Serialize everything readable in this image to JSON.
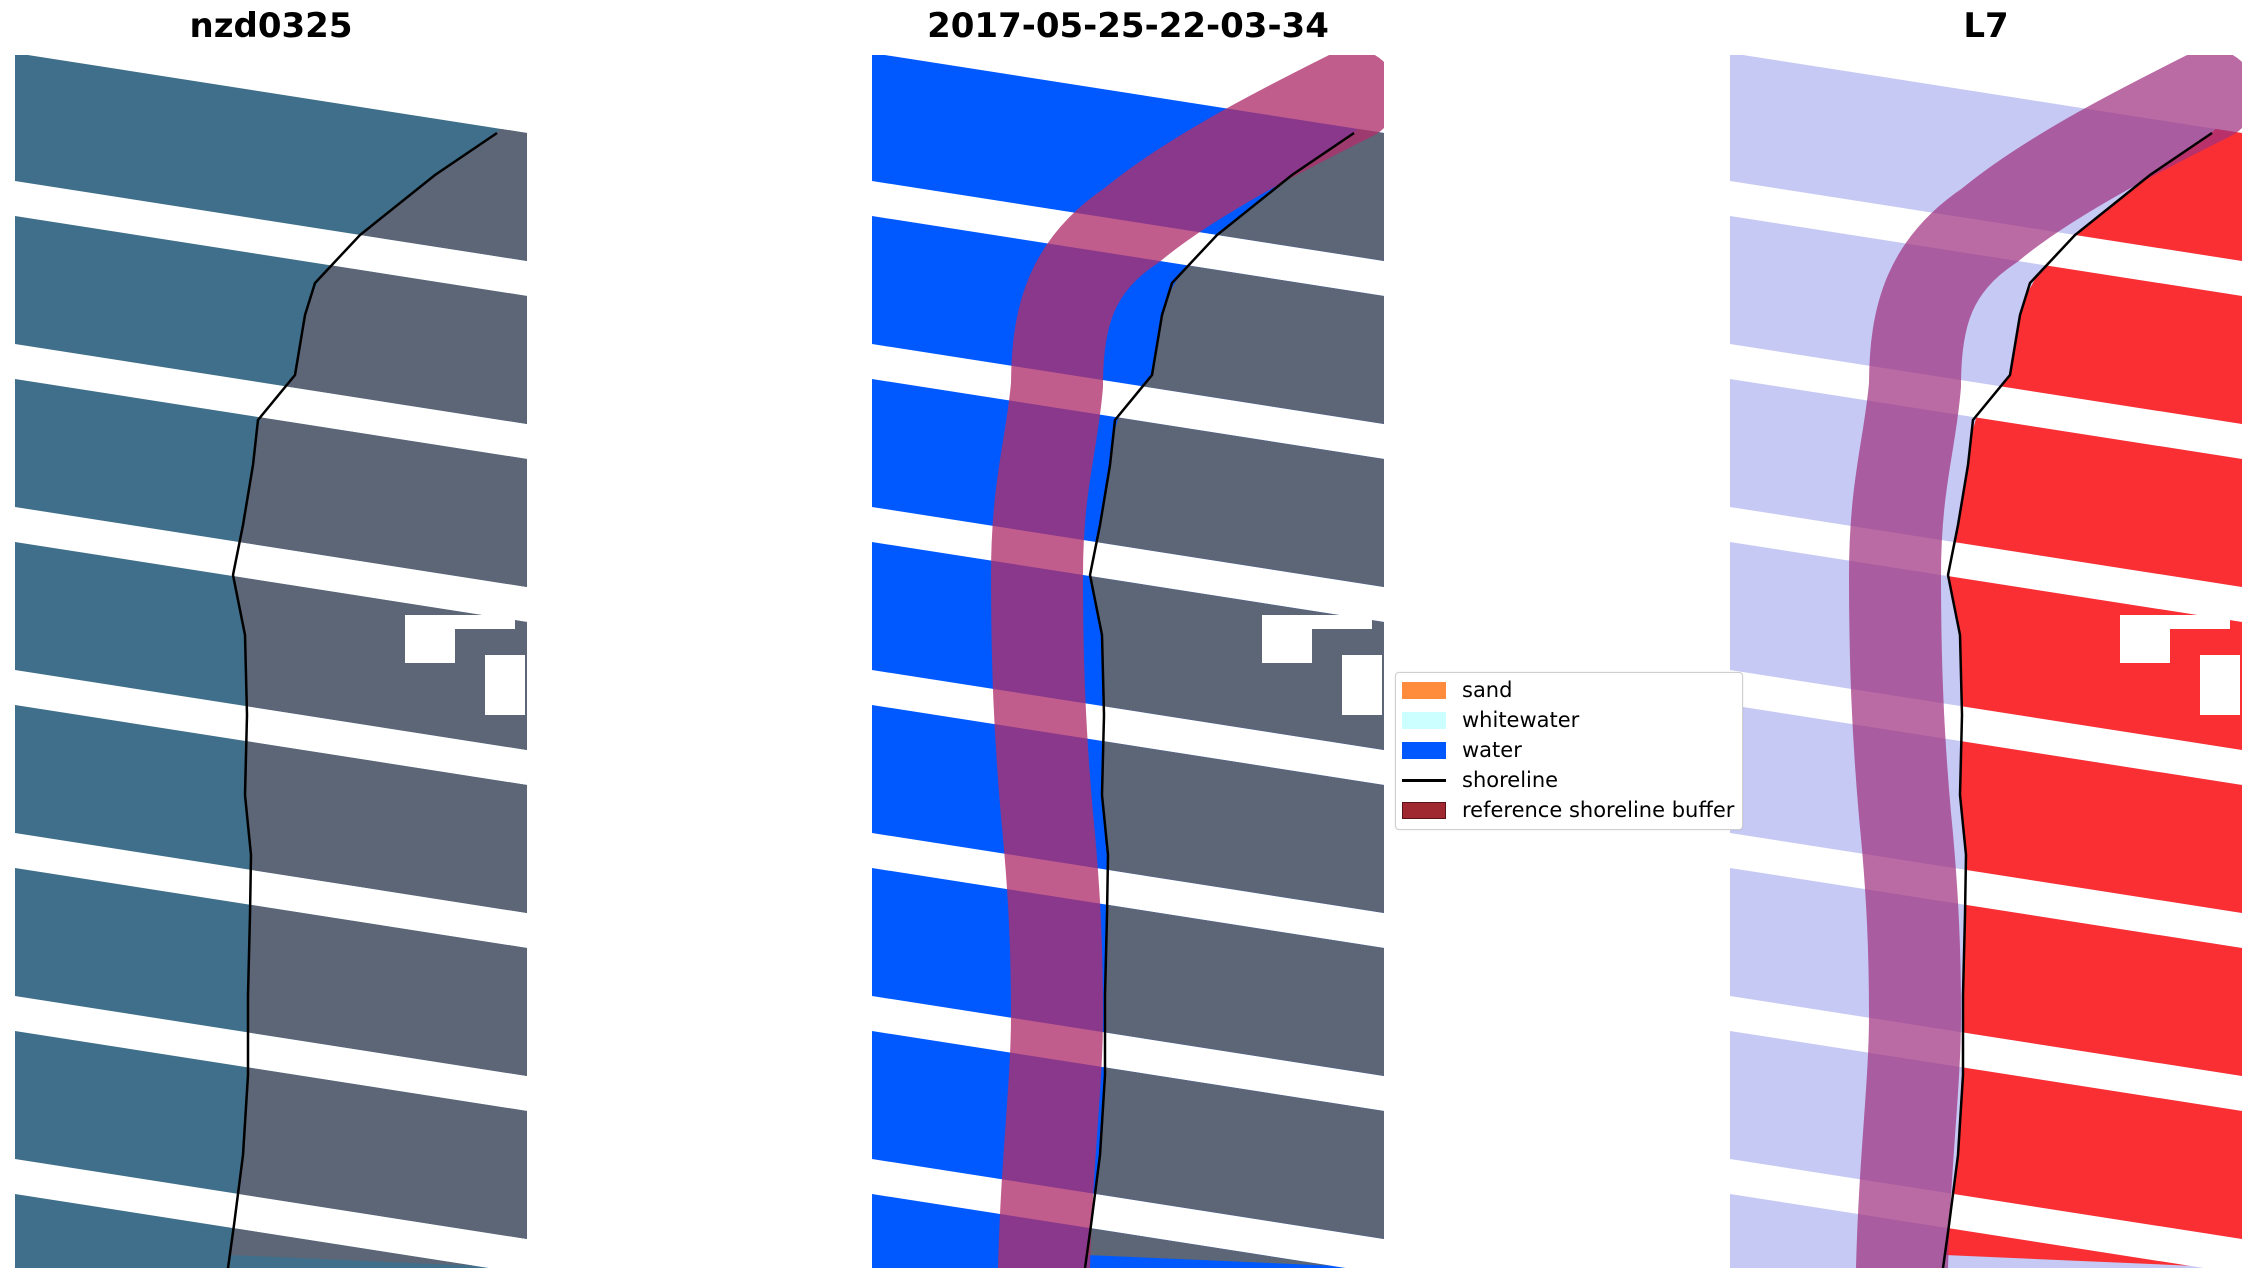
{
  "panels": [
    {
      "title": "nzd0325"
    },
    {
      "title": "2017-05-25-22-03-34"
    },
    {
      "title": "L7"
    }
  ],
  "legend": [
    {
      "label": "sand",
      "color": "#ff8c3c"
    },
    {
      "label": "whitewater",
      "color": "#ccffff"
    },
    {
      "label": "water",
      "color": "#0059ff"
    },
    {
      "label": "shoreline",
      "color": "#000000"
    },
    {
      "label": "reference shoreline buffer",
      "color": "#a02830"
    }
  ],
  "colors": {
    "ocean_rgb": "#3f6f8a",
    "land_rgb": "#5d6676",
    "water_class": "#0059ff",
    "buffer_overlay": "#b0306c",
    "land_index": "#ff1e1e",
    "water_index": "#c6c9f4",
    "shoreline": "#000000"
  }
}
